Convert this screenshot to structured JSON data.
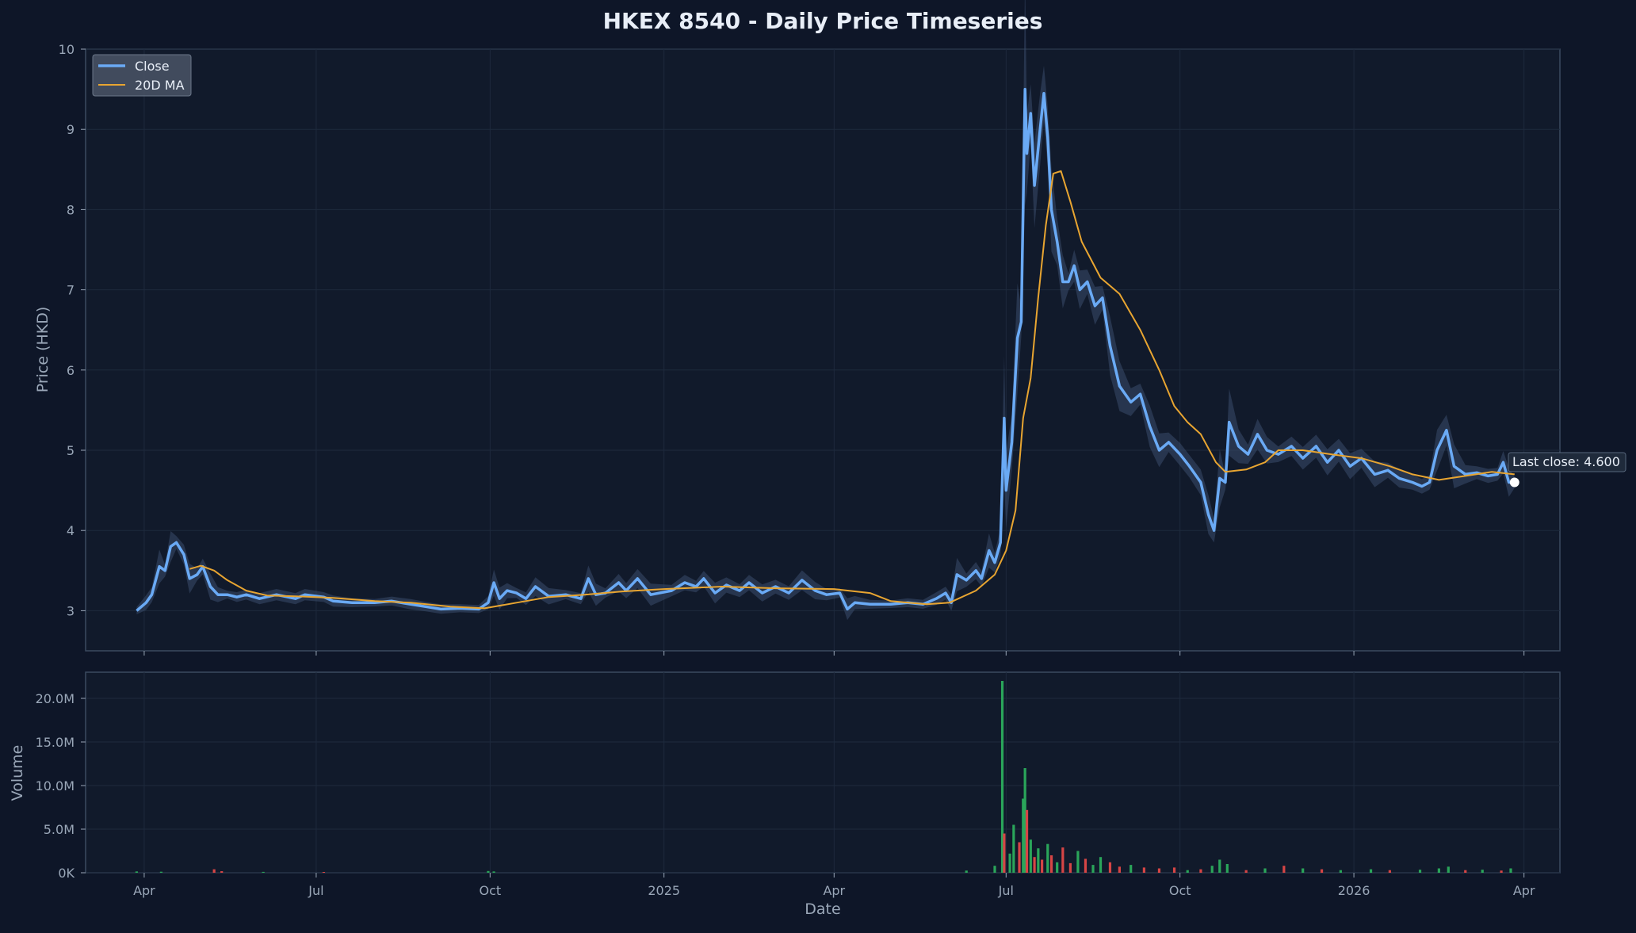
{
  "chart_data": {
    "type": "line",
    "title": "HKEX 8540 - Daily Price Timeseries",
    "colors": {
      "background": "#0e1628",
      "plot_bg": "#111a2b",
      "grid": "#1e2a3d",
      "spine": "#3b4a60",
      "close": "#6aaaf5",
      "ma": "#e8a531",
      "band": "#3a4d6b",
      "vol_up": "#2aa55a",
      "vol_down": "#d64545",
      "text": "#e8eef7",
      "tick": "#9aa7b8"
    },
    "price_panel": {
      "ylabel": "Price (HKD)",
      "ylim": [
        2.5,
        10
      ],
      "yticks": [
        3,
        4,
        5,
        6,
        7,
        8,
        9,
        10
      ],
      "grid": true,
      "legend": {
        "placement": "top-left",
        "items": [
          {
            "label": "Close",
            "color_key": "close"
          },
          {
            "label": "20D MA",
            "color_key": "ma"
          }
        ]
      },
      "annotation": {
        "text": "Last close: 4.600",
        "date": "2026-03-27",
        "value": 4.6
      }
    },
    "volume_panel": {
      "ylabel": "Volume",
      "ylim": [
        0,
        23000000
      ],
      "yticks": [
        0,
        5000000,
        10000000,
        15000000,
        20000000
      ],
      "ytick_labels": [
        "0K",
        "5.0M",
        "10.0M",
        "15.0M",
        "20.0M"
      ]
    },
    "x_axis": {
      "xlabel": "Date",
      "range": [
        "2024-03-01",
        "2026-04-20"
      ],
      "ticks": [
        {
          "date": "2024-04-01",
          "label": "Apr"
        },
        {
          "date": "2024-07-01",
          "label": "Jul"
        },
        {
          "date": "2024-10-01",
          "label": "Oct"
        },
        {
          "date": "2025-01-01",
          "label": "2025"
        },
        {
          "date": "2025-04-01",
          "label": "Apr"
        },
        {
          "date": "2025-07-01",
          "label": "Jul"
        },
        {
          "date": "2025-10-01",
          "label": "Oct"
        },
        {
          "date": "2026-01-01",
          "label": "2026"
        },
        {
          "date": "2026-04-01",
          "label": "Apr"
        }
      ]
    },
    "series": [
      {
        "name": "Close",
        "points": [
          [
            "2024-03-28",
            3.0
          ],
          [
            "2024-04-02",
            3.1
          ],
          [
            "2024-04-05",
            3.2
          ],
          [
            "2024-04-09",
            3.55
          ],
          [
            "2024-04-12",
            3.5
          ],
          [
            "2024-04-15",
            3.8
          ],
          [
            "2024-04-18",
            3.85
          ],
          [
            "2024-04-22",
            3.7
          ],
          [
            "2024-04-25",
            3.4
          ],
          [
            "2024-04-29",
            3.45
          ],
          [
            "2024-05-02",
            3.55
          ],
          [
            "2024-05-06",
            3.3
          ],
          [
            "2024-05-10",
            3.2
          ],
          [
            "2024-05-15",
            3.2
          ],
          [
            "2024-05-20",
            3.17
          ],
          [
            "2024-05-25",
            3.2
          ],
          [
            "2024-06-01",
            3.15
          ],
          [
            "2024-06-10",
            3.2
          ],
          [
            "2024-06-20",
            3.15
          ],
          [
            "2024-06-25",
            3.2
          ],
          [
            "2024-07-05",
            3.17
          ],
          [
            "2024-07-10",
            3.12
          ],
          [
            "2024-07-20",
            3.1
          ],
          [
            "2024-08-01",
            3.1
          ],
          [
            "2024-08-10",
            3.12
          ],
          [
            "2024-08-20",
            3.08
          ],
          [
            "2024-08-28",
            3.05
          ],
          [
            "2024-09-05",
            3.02
          ],
          [
            "2024-09-15",
            3.03
          ],
          [
            "2024-09-25",
            3.02
          ],
          [
            "2024-09-30",
            3.1
          ],
          [
            "2024-10-03",
            3.35
          ],
          [
            "2024-10-06",
            3.15
          ],
          [
            "2024-10-10",
            3.25
          ],
          [
            "2024-10-15",
            3.22
          ],
          [
            "2024-10-20",
            3.15
          ],
          [
            "2024-10-25",
            3.3
          ],
          [
            "2024-11-01",
            3.18
          ],
          [
            "2024-11-10",
            3.2
          ],
          [
            "2024-11-18",
            3.15
          ],
          [
            "2024-11-22",
            3.4
          ],
          [
            "2024-11-26",
            3.2
          ],
          [
            "2024-12-01",
            3.22
          ],
          [
            "2024-12-08",
            3.35
          ],
          [
            "2024-12-12",
            3.25
          ],
          [
            "2024-12-18",
            3.4
          ],
          [
            "2024-12-25",
            3.2
          ],
          [
            "2025-01-05",
            3.25
          ],
          [
            "2025-01-12",
            3.35
          ],
          [
            "2025-01-18",
            3.3
          ],
          [
            "2025-01-22",
            3.4
          ],
          [
            "2025-01-28",
            3.22
          ],
          [
            "2025-02-03",
            3.32
          ],
          [
            "2025-02-10",
            3.25
          ],
          [
            "2025-02-15",
            3.35
          ],
          [
            "2025-02-22",
            3.22
          ],
          [
            "2025-03-01",
            3.3
          ],
          [
            "2025-03-08",
            3.22
          ],
          [
            "2025-03-15",
            3.38
          ],
          [
            "2025-03-22",
            3.25
          ],
          [
            "2025-03-28",
            3.2
          ],
          [
            "2025-04-04",
            3.22
          ],
          [
            "2025-04-08",
            3.02
          ],
          [
            "2025-04-12",
            3.1
          ],
          [
            "2025-04-20",
            3.08
          ],
          [
            "2025-05-01",
            3.08
          ],
          [
            "2025-05-10",
            3.1
          ],
          [
            "2025-05-18",
            3.08
          ],
          [
            "2025-05-25",
            3.15
          ],
          [
            "2025-05-30",
            3.22
          ],
          [
            "2025-06-02",
            3.1
          ],
          [
            "2025-06-05",
            3.45
          ],
          [
            "2025-06-10",
            3.38
          ],
          [
            "2025-06-15",
            3.5
          ],
          [
            "2025-06-18",
            3.4
          ],
          [
            "2025-06-22",
            3.75
          ],
          [
            "2025-06-25",
            3.6
          ],
          [
            "2025-06-28",
            3.85
          ],
          [
            "2025-06-30",
            5.4
          ],
          [
            "2025-07-01",
            4.5
          ],
          [
            "2025-07-04",
            5.1
          ],
          [
            "2025-07-07",
            6.4
          ],
          [
            "2025-07-09",
            6.6
          ],
          [
            "2025-07-11",
            9.5
          ],
          [
            "2025-07-12",
            8.7
          ],
          [
            "2025-07-14",
            9.2
          ],
          [
            "2025-07-16",
            8.3
          ],
          [
            "2025-07-19",
            9.0
          ],
          [
            "2025-07-21",
            9.45
          ],
          [
            "2025-07-23",
            8.9
          ],
          [
            "2025-07-25",
            8.0
          ],
          [
            "2025-07-28",
            7.6
          ],
          [
            "2025-07-31",
            7.1
          ],
          [
            "2025-08-03",
            7.1
          ],
          [
            "2025-08-06",
            7.3
          ],
          [
            "2025-08-09",
            7.0
          ],
          [
            "2025-08-13",
            7.1
          ],
          [
            "2025-08-17",
            6.8
          ],
          [
            "2025-08-21",
            6.9
          ],
          [
            "2025-08-25",
            6.3
          ],
          [
            "2025-08-30",
            5.8
          ],
          [
            "2025-09-05",
            5.6
          ],
          [
            "2025-09-10",
            5.7
          ],
          [
            "2025-09-15",
            5.3
          ],
          [
            "2025-09-20",
            5.0
          ],
          [
            "2025-09-25",
            5.1
          ],
          [
            "2025-10-01",
            4.95
          ],
          [
            "2025-10-06",
            4.8
          ],
          [
            "2025-10-12",
            4.6
          ],
          [
            "2025-10-16",
            4.2
          ],
          [
            "2025-10-19",
            4.0
          ],
          [
            "2025-10-22",
            4.65
          ],
          [
            "2025-10-25",
            4.6
          ],
          [
            "2025-10-27",
            5.35
          ],
          [
            "2025-11-01",
            5.05
          ],
          [
            "2025-11-06",
            4.95
          ],
          [
            "2025-11-11",
            5.2
          ],
          [
            "2025-11-16",
            5.0
          ],
          [
            "2025-11-22",
            4.95
          ],
          [
            "2025-11-29",
            5.05
          ],
          [
            "2025-12-05",
            4.9
          ],
          [
            "2025-12-12",
            5.05
          ],
          [
            "2025-12-18",
            4.85
          ],
          [
            "2025-12-24",
            5.0
          ],
          [
            "2025-12-30",
            4.8
          ],
          [
            "2026-01-05",
            4.9
          ],
          [
            "2026-01-12",
            4.7
          ],
          [
            "2026-01-19",
            4.75
          ],
          [
            "2026-01-25",
            4.65
          ],
          [
            "2026-02-01",
            4.6
          ],
          [
            "2026-02-06",
            4.55
          ],
          [
            "2026-02-10",
            4.6
          ],
          [
            "2026-02-14",
            5.0
          ],
          [
            "2026-02-19",
            5.25
          ],
          [
            "2026-02-23",
            4.8
          ],
          [
            "2026-03-01",
            4.7
          ],
          [
            "2026-03-07",
            4.72
          ],
          [
            "2026-03-13",
            4.68
          ],
          [
            "2026-03-18",
            4.7
          ],
          [
            "2026-03-21",
            4.85
          ],
          [
            "2026-03-24",
            4.6
          ],
          [
            "2026-03-27",
            4.6
          ]
        ]
      },
      {
        "name": "20D MA",
        "points": [
          [
            "2024-04-25",
            3.52
          ],
          [
            "2024-05-01",
            3.56
          ],
          [
            "2024-05-08",
            3.5
          ],
          [
            "2024-05-15",
            3.38
          ],
          [
            "2024-05-25",
            3.25
          ],
          [
            "2024-06-05",
            3.19
          ],
          [
            "2024-06-20",
            3.18
          ],
          [
            "2024-07-10",
            3.16
          ],
          [
            "2024-08-01",
            3.12
          ],
          [
            "2024-08-20",
            3.1
          ],
          [
            "2024-09-10",
            3.05
          ],
          [
            "2024-09-28",
            3.03
          ],
          [
            "2024-10-15",
            3.1
          ],
          [
            "2024-11-01",
            3.17
          ],
          [
            "2024-11-20",
            3.2
          ],
          [
            "2024-12-10",
            3.24
          ],
          [
            "2025-01-01",
            3.27
          ],
          [
            "2025-02-01",
            3.3
          ],
          [
            "2025-03-01",
            3.28
          ],
          [
            "2025-04-01",
            3.27
          ],
          [
            "2025-04-20",
            3.22
          ],
          [
            "2025-05-01",
            3.12
          ],
          [
            "2025-05-20",
            3.08
          ],
          [
            "2025-06-01",
            3.1
          ],
          [
            "2025-06-15",
            3.25
          ],
          [
            "2025-06-25",
            3.45
          ],
          [
            "2025-07-01",
            3.75
          ],
          [
            "2025-07-06",
            4.25
          ],
          [
            "2025-07-10",
            5.4
          ],
          [
            "2025-07-14",
            5.9
          ],
          [
            "2025-07-18",
            6.9
          ],
          [
            "2025-07-22",
            7.8
          ],
          [
            "2025-07-26",
            8.45
          ],
          [
            "2025-07-30",
            8.48
          ],
          [
            "2025-08-04",
            8.1
          ],
          [
            "2025-08-10",
            7.6
          ],
          [
            "2025-08-20",
            7.15
          ],
          [
            "2025-08-30",
            6.95
          ],
          [
            "2025-09-10",
            6.5
          ],
          [
            "2025-09-20",
            6.0
          ],
          [
            "2025-09-28",
            5.55
          ],
          [
            "2025-10-05",
            5.35
          ],
          [
            "2025-10-12",
            5.2
          ],
          [
            "2025-10-20",
            4.85
          ],
          [
            "2025-10-25",
            4.73
          ],
          [
            "2025-11-05",
            4.76
          ],
          [
            "2025-11-15",
            4.85
          ],
          [
            "2025-11-22",
            5.0
          ],
          [
            "2025-12-05",
            5.0
          ],
          [
            "2025-12-20",
            4.95
          ],
          [
            "2026-01-05",
            4.9
          ],
          [
            "2026-01-20",
            4.8
          ],
          [
            "2026-02-01",
            4.7
          ],
          [
            "2026-02-15",
            4.63
          ],
          [
            "2026-03-01",
            4.68
          ],
          [
            "2026-03-15",
            4.73
          ],
          [
            "2026-03-27",
            4.7
          ]
        ]
      }
    ],
    "volume": [
      [
        "2024-03-28",
        150000,
        "up"
      ],
      [
        "2024-04-10",
        120000,
        "up"
      ],
      [
        "2024-05-08",
        400000,
        "down"
      ],
      [
        "2024-05-12",
        180000,
        "down"
      ],
      [
        "2024-06-03",
        100000,
        "up"
      ],
      [
        "2024-07-05",
        90000,
        "down"
      ],
      [
        "2024-09-30",
        200000,
        "up"
      ],
      [
        "2024-10-03",
        150000,
        "up"
      ],
      [
        "2025-06-10",
        250000,
        "up"
      ],
      [
        "2025-06-25",
        800000,
        "up"
      ],
      [
        "2025-06-29",
        22000000,
        "up"
      ],
      [
        "2025-06-30",
        4500000,
        "down"
      ],
      [
        "2025-07-03",
        2200000,
        "up"
      ],
      [
        "2025-07-05",
        5500000,
        "up"
      ],
      [
        "2025-07-08",
        3500000,
        "down"
      ],
      [
        "2025-07-10",
        8500000,
        "up"
      ],
      [
        "2025-07-11",
        12000000,
        "up"
      ],
      [
        "2025-07-12",
        7200000,
        "down"
      ],
      [
        "2025-07-14",
        3800000,
        "up"
      ],
      [
        "2025-07-16",
        1800000,
        "down"
      ],
      [
        "2025-07-18",
        2800000,
        "up"
      ],
      [
        "2025-07-20",
        1500000,
        "down"
      ],
      [
        "2025-07-23",
        3300000,
        "up"
      ],
      [
        "2025-07-25",
        2000000,
        "down"
      ],
      [
        "2025-07-28",
        1200000,
        "up"
      ],
      [
        "2025-07-31",
        2900000,
        "down"
      ],
      [
        "2025-08-04",
        1100000,
        "down"
      ],
      [
        "2025-08-08",
        2500000,
        "up"
      ],
      [
        "2025-08-12",
        1600000,
        "down"
      ],
      [
        "2025-08-16",
        900000,
        "up"
      ],
      [
        "2025-08-20",
        1800000,
        "up"
      ],
      [
        "2025-08-25",
        1200000,
        "down"
      ],
      [
        "2025-08-30",
        700000,
        "down"
      ],
      [
        "2025-09-05",
        900000,
        "up"
      ],
      [
        "2025-09-12",
        600000,
        "down"
      ],
      [
        "2025-09-20",
        500000,
        "down"
      ],
      [
        "2025-09-28",
        600000,
        "down"
      ],
      [
        "2025-10-05",
        300000,
        "up"
      ],
      [
        "2025-10-12",
        400000,
        "down"
      ],
      [
        "2025-10-18",
        800000,
        "up"
      ],
      [
        "2025-10-22",
        1500000,
        "up"
      ],
      [
        "2025-10-26",
        1000000,
        "up"
      ],
      [
        "2025-11-05",
        300000,
        "down"
      ],
      [
        "2025-11-15",
        500000,
        "up"
      ],
      [
        "2025-11-25",
        800000,
        "down"
      ],
      [
        "2025-12-05",
        500000,
        "up"
      ],
      [
        "2025-12-15",
        400000,
        "down"
      ],
      [
        "2025-12-25",
        300000,
        "up"
      ],
      [
        "2026-01-10",
        400000,
        "up"
      ],
      [
        "2026-01-20",
        300000,
        "down"
      ],
      [
        "2026-02-05",
        350000,
        "up"
      ],
      [
        "2026-02-15",
        500000,
        "up"
      ],
      [
        "2026-02-20",
        700000,
        "up"
      ],
      [
        "2026-03-01",
        300000,
        "down"
      ],
      [
        "2026-03-10",
        350000,
        "up"
      ],
      [
        "2026-03-20",
        250000,
        "down"
      ],
      [
        "2026-03-25",
        500000,
        "up"
      ]
    ]
  }
}
